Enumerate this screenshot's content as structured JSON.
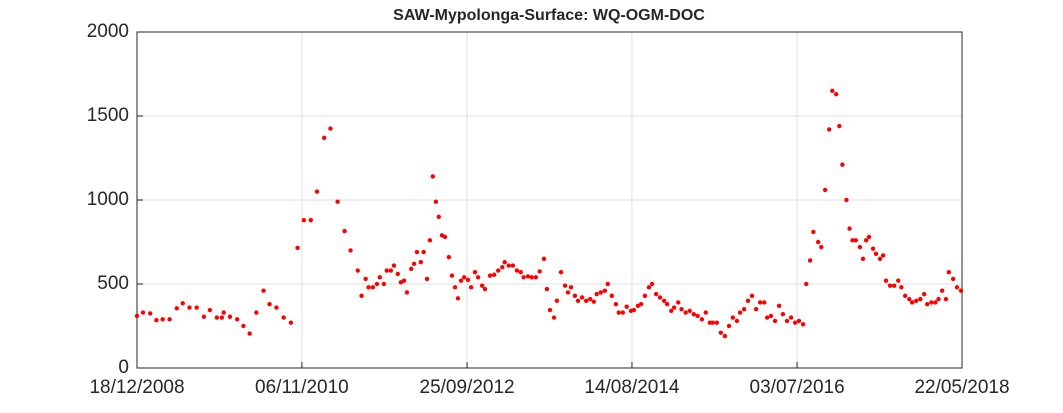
{
  "chart_data": {
    "type": "scatter",
    "title": "SAW-Mypolonga-Surface: WQ-OGM-DOC",
    "color": "#ff0000",
    "grid": true,
    "xlim": [
      "18/12/2008",
      "22/05/2018"
    ],
    "xticks": [
      "18/12/2008",
      "06/11/2010",
      "25/09/2012",
      "14/08/2014",
      "03/07/2016",
      "22/05/2018"
    ],
    "ylim": [
      0,
      2000
    ],
    "yticks": [
      0,
      500,
      1000,
      1500,
      2000
    ],
    "x": [
      "18/12/2008",
      "12/01/2009",
      "11/02/2009",
      "09/03/2009",
      "04/04/2009",
      "03/05/2009",
      "02/06/2009",
      "27/06/2009",
      "25/07/2009",
      "24/08/2009",
      "23/09/2009",
      "18/10/2009",
      "16/11/2009",
      "07/12/2009",
      "15/12/2009",
      "10/01/2010",
      "09/02/2010",
      "07/03/2010",
      "02/04/2010",
      "30/04/2010",
      "30/05/2010",
      "24/06/2010",
      "23/07/2010",
      "22/08/2010",
      "21/09/2010",
      "19/10/2010",
      "14/11/2010",
      "13/12/2010",
      "08/01/2011",
      "07/02/2011",
      "05/03/2011",
      "04/04/2011",
      "03/05/2011",
      "28/05/2011",
      "27/06/2011",
      "13/07/2011",
      "30/07/2011",
      "11/08/2011",
      "29/08/2011",
      "15/09/2011",
      "27/09/2011",
      "14/10/2011",
      "26/10/2011",
      "12/11/2011",
      "25/11/2011",
      "11/12/2011",
      "24/12/2011",
      "06/01/2012",
      "18/01/2012",
      "05/02/2012",
      "17/02/2012",
      "29/02/2012",
      "16/03/2012",
      "28/03/2012",
      "11/04/2012",
      "23/04/2012",
      "05/05/2012",
      "18/05/2012",
      "30/05/2012",
      "12/06/2012",
      "25/06/2012",
      "11/07/2012",
      "24/07/2012",
      "06/08/2012",
      "18/08/2012",
      "31/08/2012",
      "13/09/2012",
      "29/09/2012",
      "12/10/2012",
      "28/10/2012",
      "10/11/2012",
      "27/11/2012",
      "09/12/2012",
      "30/12/2012",
      "16/01/2013",
      "02/02/2013",
      "19/02/2013",
      "01/03/2013",
      "18/03/2013",
      "04/04/2013",
      "21/04/2013",
      "07/05/2013",
      "19/05/2013",
      "06/06/2013",
      "22/06/2013",
      "09/07/2013",
      "25/07/2013",
      "12/08/2013",
      "24/08/2013",
      "06/09/2013",
      "23/09/2013",
      "05/10/2013",
      "22/10/2013",
      "08/11/2013",
      "20/11/2013",
      "03/12/2013",
      "19/12/2013",
      "01/01/2014",
      "18/01/2014",
      "04/02/2014",
      "21/02/2014",
      "08/03/2014",
      "20/03/2014",
      "06/04/2014",
      "23/04/2014",
      "05/05/2014",
      "22/05/2014",
      "08/06/2014",
      "20/06/2014",
      "07/07/2014",
      "23/07/2014",
      "10/08/2014",
      "22/08/2014",
      "08/09/2014",
      "21/09/2014",
      "07/10/2014",
      "24/10/2014",
      "06/11/2014",
      "23/11/2014",
      "09/12/2014",
      "26/12/2014",
      "08/01/2015",
      "25/01/2015",
      "06/02/2015",
      "23/02/2015",
      "09/03/2015",
      "26/03/2015",
      "12/04/2015",
      "29/04/2015",
      "15/05/2015",
      "02/06/2015",
      "18/06/2015",
      "05/07/2015",
      "17/07/2015",
      "03/08/2015",
      "20/08/2015",
      "06/09/2015",
      "23/09/2015",
      "09/10/2015",
      "26/10/2015",
      "08/11/2015",
      "25/11/2015",
      "11/12/2015",
      "28/12/2015",
      "14/01/2016",
      "31/01/2016",
      "17/02/2016",
      "29/02/2016",
      "16/03/2016",
      "02/04/2016",
      "19/04/2016",
      "05/05/2016",
      "22/05/2016",
      "08/06/2016",
      "25/06/2016",
      "11/07/2016",
      "28/07/2016",
      "10/08/2016",
      "26/08/2016",
      "09/09/2016",
      "29/09/2016",
      "12/10/2016",
      "28/10/2016",
      "14/11/2016",
      "27/11/2016",
      "13/12/2016",
      "26/12/2016",
      "08/01/2017",
      "25/01/2017",
      "07/02/2017",
      "19/02/2017",
      "05/03/2017",
      "22/03/2017",
      "04/04/2017",
      "17/04/2017",
      "29/04/2017",
      "16/05/2017",
      "28/05/2017",
      "14/06/2017",
      "27/06/2017",
      "09/07/2017",
      "26/07/2017",
      "12/08/2017",
      "29/08/2017",
      "11/09/2017",
      "27/09/2017",
      "14/10/2017",
      "26/10/2017",
      "12/11/2017",
      "29/11/2017",
      "15/12/2017",
      "28/12/2017",
      "14/01/2018",
      "31/01/2018",
      "13/02/2018",
      "28/02/2018",
      "16/03/2018",
      "28/03/2018",
      "15/04/2018",
      "01/05/2018",
      "18/05/2018"
    ],
    "values": [
      310,
      330,
      325,
      285,
      290,
      290,
      355,
      385,
      360,
      360,
      305,
      345,
      300,
      300,
      330,
      305,
      290,
      250,
      205,
      330,
      460,
      380,
      360,
      300,
      270,
      715,
      880,
      880,
      1050,
      1370,
      1425,
      990,
      815,
      700,
      580,
      430,
      530,
      480,
      480,
      500,
      540,
      500,
      580,
      580,
      610,
      560,
      510,
      520,
      450,
      590,
      620,
      690,
      630,
      690,
      530,
      760,
      1140,
      990,
      900,
      790,
      780,
      660,
      550,
      480,
      415,
      520,
      540,
      525,
      480,
      570,
      540,
      490,
      470,
      550,
      555,
      580,
      600,
      630,
      610,
      610,
      580,
      570,
      540,
      545,
      540,
      540,
      575,
      650,
      470,
      345,
      300,
      400,
      570,
      490,
      450,
      480,
      430,
      400,
      420,
      400,
      410,
      395,
      440,
      450,
      460,
      500,
      430,
      380,
      330,
      330,
      365,
      340,
      345,
      370,
      380,
      430,
      480,
      500,
      440,
      420,
      400,
      380,
      340,
      360,
      390,
      350,
      330,
      340,
      320,
      310,
      290,
      330,
      270,
      270,
      270,
      210,
      190,
      250,
      300,
      280,
      330,
      350,
      400,
      430,
      350,
      390,
      390,
      300,
      310,
      280,
      370,
      320,
      280,
      300,
      270,
      280,
      260,
      500,
      640,
      810,
      750,
      720,
      1060,
      1420,
      1650,
      1630,
      1440,
      1210,
      1000,
      830,
      760,
      760,
      720,
      650,
      760,
      780,
      710,
      680,
      650,
      670,
      520,
      490,
      490,
      520,
      480,
      430,
      410,
      390,
      400,
      410,
      440,
      380,
      390,
      390,
      410,
      460,
      410,
      570,
      530,
      480,
      460
    ]
  }
}
